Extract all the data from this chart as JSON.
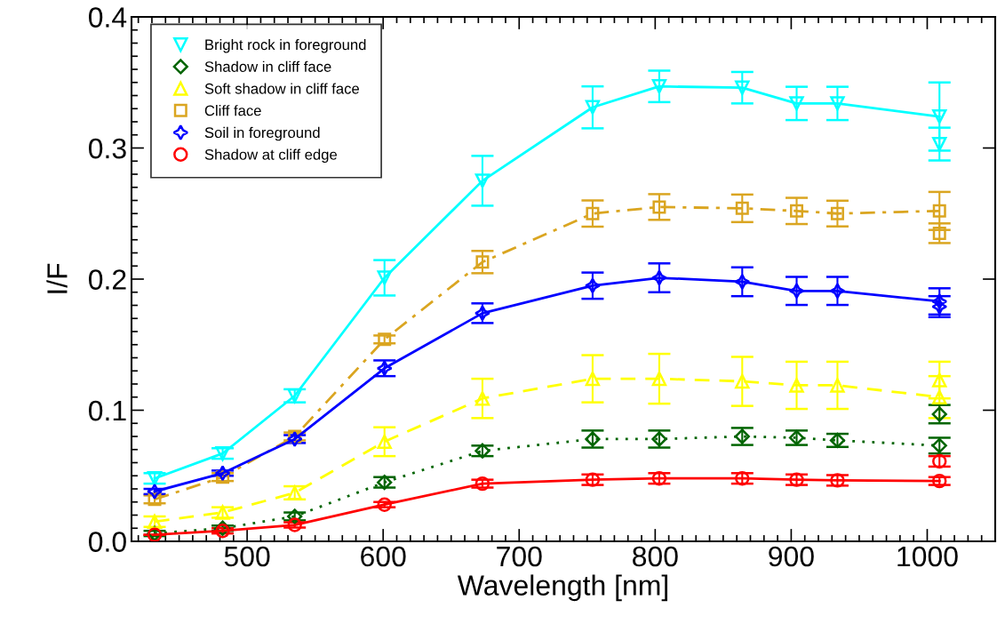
{
  "chart_data": {
    "type": "line",
    "xlabel": "Wavelength [nm]",
    "ylabel": "I/F",
    "xlim": [
      415,
      1050
    ],
    "xticks": [
      500,
      600,
      700,
      800,
      900,
      1000
    ],
    "ylim": [
      0,
      0.4
    ],
    "yticks": [
      {
        "value": 0,
        "label": "0.0"
      },
      0.1,
      0.2,
      0.3,
      0.4
    ],
    "legend": "top left",
    "series": [
      {
        "name": "Bright rock in foreground",
        "color": "#00ffff",
        "marker": "triangle_down",
        "line_style": "solid",
        "x": [
          432,
          482,
          535,
          601,
          673,
          754,
          803,
          864,
          904,
          934,
          1009
        ],
        "values": [
          0.048,
          0.067,
          0.111,
          0.201,
          0.275,
          0.331,
          0.347,
          0.346,
          0.334,
          0.334,
          0.324
        ],
        "errors": [
          0.004,
          0.004,
          0.005,
          0.0135,
          0.019,
          0.016,
          0.012,
          0.012,
          0.0127,
          0.0127,
          0.026
        ]
      },
      {
        "name": "Shadow in cliff face",
        "color": "#006400",
        "marker": "diamond",
        "line_style": "dotted",
        "x": [
          432,
          482,
          535,
          601,
          673,
          754,
          803,
          864,
          904,
          934,
          1009
        ],
        "values": [
          0.006,
          0.01,
          0.019,
          0.045,
          0.069,
          0.078,
          0.078,
          0.08,
          0.079,
          0.077,
          0.073
        ],
        "errors": [
          0.002,
          0.002,
          0.003,
          0.004,
          0.004,
          0.0065,
          0.0065,
          0.0065,
          0.0055,
          0.005,
          0.006
        ]
      },
      {
        "name": "Soft shadow in cliff face",
        "color": "#ffff00",
        "marker": "triangle",
        "line_style": "dashed",
        "x": [
          432,
          482,
          535,
          601,
          673,
          754,
          803,
          864,
          904,
          934,
          1009
        ],
        "values": [
          0.015,
          0.022,
          0.037,
          0.076,
          0.109,
          0.124,
          0.124,
          0.122,
          0.119,
          0.119,
          0.11
        ],
        "errors": [
          0.004,
          0.004,
          0.005,
          0.011,
          0.015,
          0.018,
          0.019,
          0.0187,
          0.018,
          0.018,
          0.016
        ]
      },
      {
        "name": "Cliff face",
        "color": "#daa520",
        "marker": "square",
        "line_style": "dashdot",
        "x": [
          432,
          482,
          535,
          601,
          673,
          754,
          803,
          864,
          904,
          934,
          1009
        ],
        "values": [
          0.032,
          0.049,
          0.08,
          0.154,
          0.213,
          0.25,
          0.255,
          0.254,
          0.252,
          0.25,
          0.252
        ],
        "errors": [
          0.003,
          0.003,
          0.003,
          0.003,
          0.0085,
          0.01,
          0.0098,
          0.0105,
          0.01,
          0.0098,
          0.0145
        ]
      },
      {
        "name": "Soil in foreground",
        "color": "#0000ff",
        "marker": "star",
        "line_style": "solid",
        "x": [
          432,
          482,
          535,
          601,
          673,
          754,
          803,
          864,
          904,
          934,
          1009
        ],
        "values": [
          0.038,
          0.052,
          0.078,
          0.132,
          0.174,
          0.195,
          0.201,
          0.198,
          0.191,
          0.191,
          0.183
        ],
        "errors": [
          0.002,
          0.002,
          0.003,
          0.006,
          0.0075,
          0.01,
          0.011,
          0.011,
          0.0107,
          0.0107,
          0.01
        ]
      },
      {
        "name": "Shadow at cliff edge",
        "color": "#ff0000",
        "marker": "circle",
        "line_style": "solid",
        "x": [
          432,
          482,
          535,
          601,
          673,
          754,
          803,
          864,
          904,
          934,
          1009
        ],
        "values": [
          0.005,
          0.008,
          0.0125,
          0.028,
          0.044,
          0.047,
          0.048,
          0.048,
          0.047,
          0.0465,
          0.046
        ],
        "errors": [
          null,
          0.002,
          0.002,
          0.002,
          0.003,
          0.004,
          0.004,
          0.004,
          0.004,
          0.004,
          0.003
        ]
      },
      {
        "type": "scatter",
        "color": "#00ffff",
        "marker": "triangle_down",
        "x": [
          1009
        ],
        "values": [
          0.303
        ],
        "errors": [
          0.0125
        ]
      },
      {
        "type": "scatter",
        "color": "#006400",
        "marker": "diamond",
        "x": [
          1009
        ],
        "values": [
          0.097
        ],
        "errors": [
          0.007
        ]
      },
      {
        "type": "scatter",
        "color": "#ffff00",
        "marker": "triangle",
        "x": [
          1009
        ],
        "values": [
          0.123
        ],
        "errors": [
          0.014
        ]
      },
      {
        "type": "scatter",
        "color": "#daa520",
        "marker": "square",
        "x": [
          1009
        ],
        "values": [
          0.235
        ],
        "errors": [
          0.0075
        ]
      },
      {
        "type": "scatter",
        "color": "#0000ff",
        "marker": "star",
        "x": [
          1009
        ],
        "values": [
          0.179
        ],
        "errors": [
          0.008
        ]
      },
      {
        "type": "scatter",
        "color": "#ff0000",
        "marker": "circle",
        "x": [
          1009
        ],
        "values": [
          0.061
        ],
        "errors": [
          0.004
        ]
      }
    ]
  }
}
